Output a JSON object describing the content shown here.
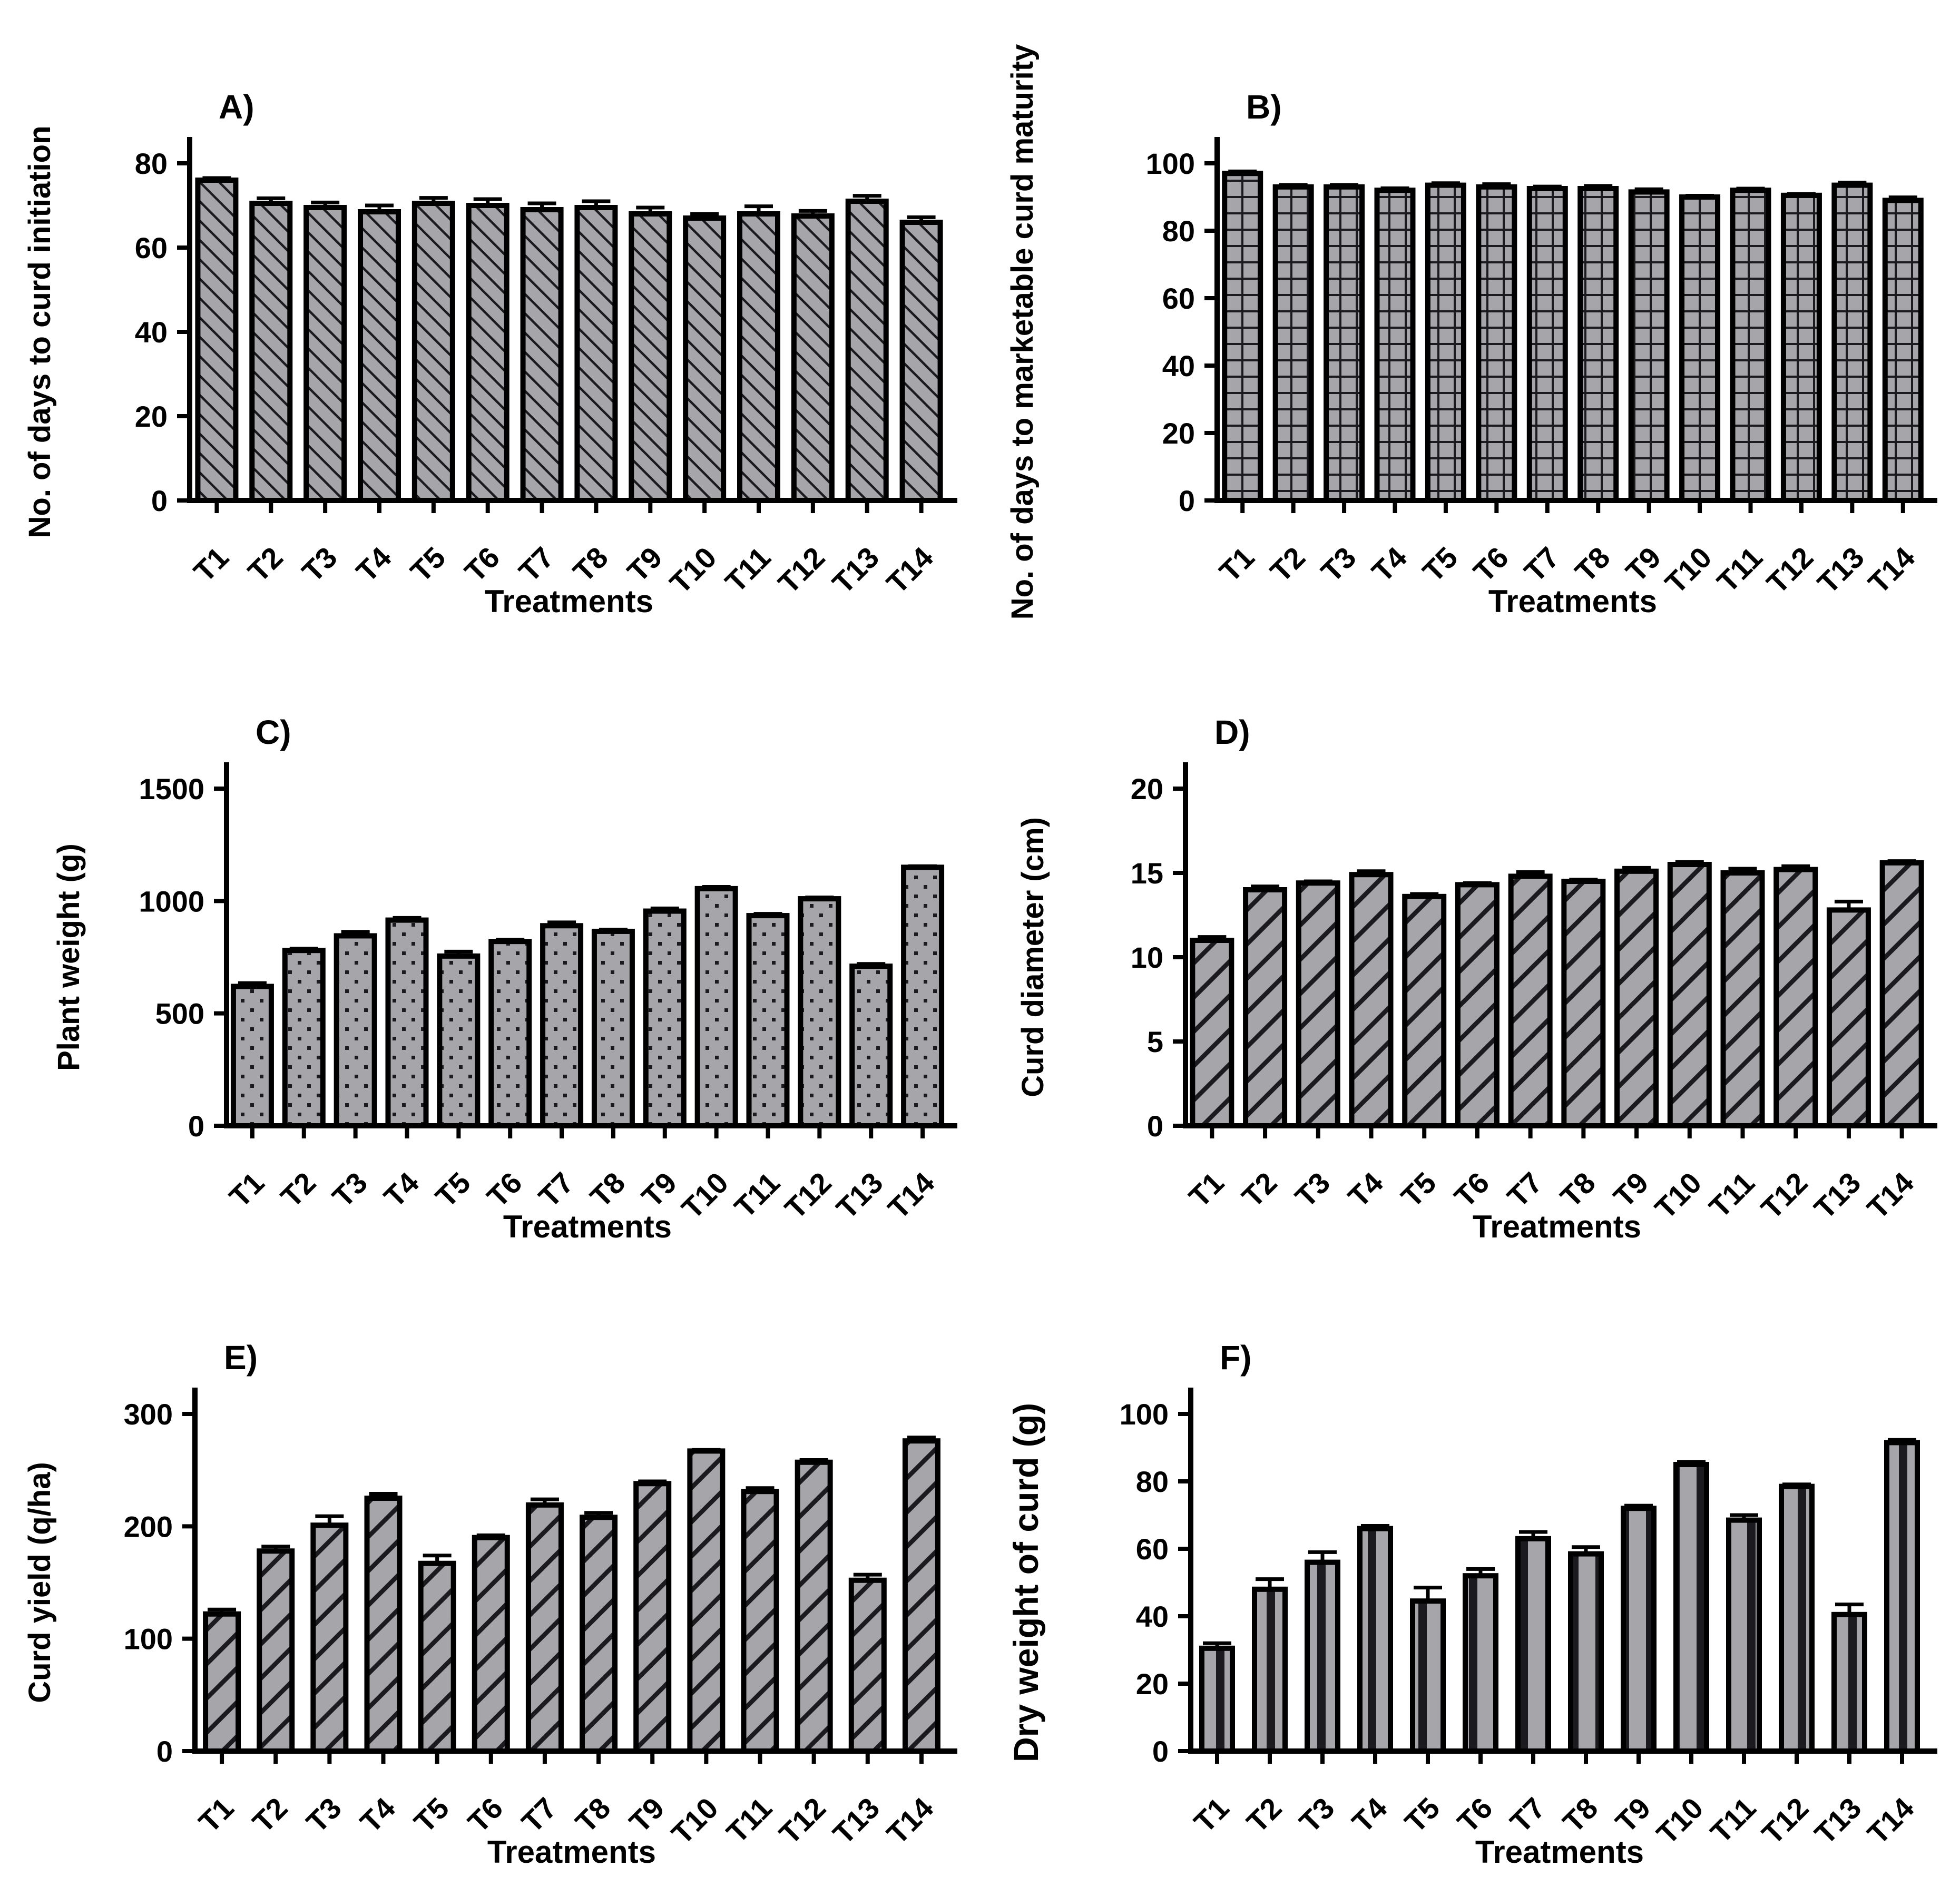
{
  "figure": {
    "background": "#ffffff",
    "colors": {
      "bar_fill": "#a6a6aa",
      "hatch": "#1b1b1f",
      "axis": "#000000",
      "text": "#000000"
    }
  },
  "chart_data": [
    {
      "type": "bar",
      "panel_label": "A)",
      "ylabel": "No. of days to curd initiation",
      "xlabel": "Treatments",
      "categories": [
        "T1",
        "T2",
        "T3",
        "T4",
        "T5",
        "T6",
        "T7",
        "T8",
        "T9",
        "T10",
        "T11",
        "T12",
        "T13",
        "T14"
      ],
      "values": [
        76,
        70.5,
        69.5,
        68.5,
        70.5,
        70,
        69,
        69.5,
        68,
        67,
        68,
        67.5,
        71,
        66
      ],
      "errors": [
        0.5,
        1.2,
        1.2,
        1.5,
        1.3,
        1.5,
        1.5,
        1.5,
        1.5,
        1.0,
        1.8,
        1.2,
        1.3,
        1.2
      ],
      "ylim": [
        0,
        80
      ],
      "yticks": [
        0,
        20,
        40,
        60,
        80
      ],
      "pattern": "thin-diagonal-down",
      "grid": false,
      "legend": "none"
    },
    {
      "type": "bar",
      "panel_label": "B)",
      "ylabel": "No. of days to marketable curd maturity",
      "xlabel": "Treatments",
      "categories": [
        "T1",
        "T2",
        "T3",
        "T4",
        "T5",
        "T6",
        "T7",
        "T8",
        "T9",
        "T10",
        "T11",
        "T12",
        "T13",
        "T14"
      ],
      "values": [
        97,
        93,
        93,
        92,
        93.5,
        93,
        92.5,
        92.5,
        91.5,
        90,
        92,
        90.5,
        93.5,
        89
      ],
      "errors": [
        0.6,
        0.6,
        0.6,
        0.6,
        0.6,
        0.8,
        0.6,
        0.8,
        0.8,
        0.4,
        0.5,
        0.4,
        0.8,
        0.9
      ],
      "ylim": [
        0,
        100
      ],
      "yticks": [
        0,
        20,
        40,
        60,
        80,
        100
      ],
      "pattern": "grid",
      "grid": false,
      "legend": "none"
    },
    {
      "type": "bar",
      "panel_label": "C)",
      "ylabel": "Plant weight (g)",
      "xlabel": "Treatments",
      "categories": [
        "T1",
        "T2",
        "T3",
        "T4",
        "T5",
        "T6",
        "T7",
        "T8",
        "T9",
        "T10",
        "T11",
        "T12",
        "T13",
        "T14"
      ],
      "values": [
        620,
        780,
        845,
        915,
        755,
        820,
        890,
        865,
        955,
        1055,
        935,
        1010,
        710,
        1150
      ],
      "errors": [
        15,
        8,
        18,
        10,
        20,
        8,
        15,
        8,
        12,
        8,
        8,
        6,
        10,
        5
      ],
      "ylim": [
        0,
        1500
      ],
      "yticks": [
        0,
        500,
        1000,
        1500
      ],
      "pattern": "dots",
      "grid": false,
      "legend": "none"
    },
    {
      "type": "bar",
      "panel_label": "D)",
      "ylabel": "Curd diameter (cm)",
      "xlabel": "Treatments",
      "categories": [
        "T1",
        "T2",
        "T3",
        "T4",
        "T5",
        "T6",
        "T7",
        "T8",
        "T9",
        "T10",
        "T11",
        "T12",
        "T13",
        "T14"
      ],
      "values": [
        11,
        14,
        14.4,
        14.9,
        13.6,
        14.3,
        14.8,
        14.5,
        15.1,
        15.5,
        15.0,
        15.2,
        12.8,
        15.6
      ],
      "errors": [
        0.2,
        0.2,
        0.1,
        0.2,
        0.15,
        0.1,
        0.25,
        0.1,
        0.2,
        0.15,
        0.25,
        0.2,
        0.5,
        0.1
      ],
      "ylim": [
        0,
        20
      ],
      "yticks": [
        0,
        5,
        10,
        15,
        20
      ],
      "pattern": "bold-diagonal-up",
      "grid": false,
      "legend": "none"
    },
    {
      "type": "bar",
      "panel_label": "E)",
      "ylabel": "Curd yield (q/ha)",
      "xlabel": "Treatments",
      "categories": [
        "T1",
        "T2",
        "T3",
        "T4",
        "T5",
        "T6",
        "T7",
        "T8",
        "T9",
        "T10",
        "T11",
        "T12",
        "T13",
        "T14"
      ],
      "values": [
        122,
        178,
        201,
        225,
        167,
        190,
        219,
        208,
        238,
        267,
        231,
        257,
        152,
        276
      ],
      "errors": [
        4,
        4,
        8,
        4,
        7,
        2,
        5,
        4,
        2,
        1,
        3,
        2,
        5,
        3
      ],
      "ylim": [
        0,
        300
      ],
      "yticks": [
        0,
        100,
        200,
        300
      ],
      "pattern": "bold-diagonal-up",
      "grid": false,
      "legend": "none"
    },
    {
      "type": "bar",
      "panel_label": "F)",
      "ylabel": "Dry weight of curd (g)",
      "xlabel": "Treatments",
      "categories": [
        "T1",
        "T2",
        "T3",
        "T4",
        "T5",
        "T6",
        "T7",
        "T8",
        "T9",
        "T10",
        "T11",
        "T12",
        "T13",
        "T14"
      ],
      "values": [
        30.5,
        48,
        56,
        66,
        44.5,
        52,
        63,
        58.5,
        72,
        85,
        68.5,
        78.5,
        40.5,
        91.5
      ],
      "errors": [
        1.5,
        3,
        3,
        0.8,
        4,
        2,
        2,
        2,
        0.8,
        0.8,
        1.5,
        0.6,
        3,
        0.8
      ],
      "ylim": [
        0,
        100
      ],
      "yticks": [
        0,
        20,
        40,
        60,
        80,
        100
      ],
      "pattern": "vertical-lines",
      "grid": false,
      "legend": "none"
    }
  ]
}
